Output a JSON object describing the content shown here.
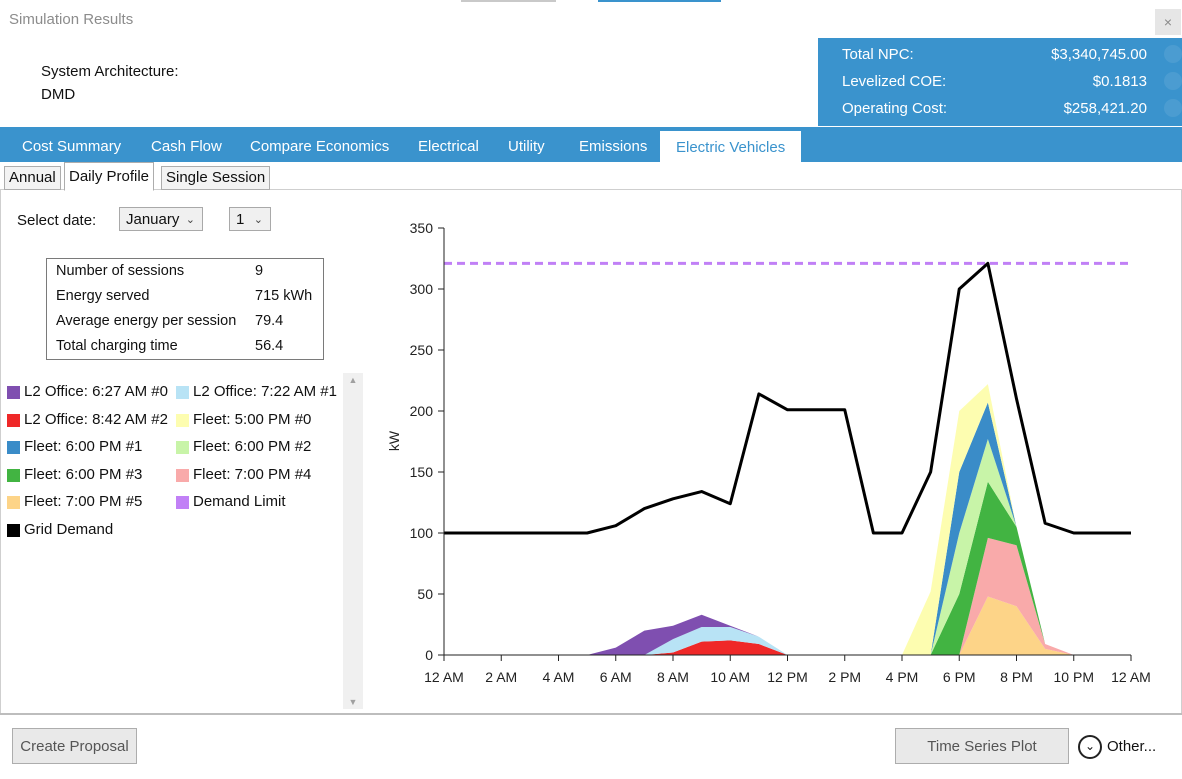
{
  "window": {
    "title": "Simulation Results",
    "close_glyph": "×"
  },
  "architecture": {
    "label": "System Architecture:",
    "value": "DMD"
  },
  "summary": {
    "rows": [
      {
        "label": "Total NPC:",
        "value": "$3,340,745.00"
      },
      {
        "label": "Levelized COE:",
        "value": "$0.1813"
      },
      {
        "label": "Operating Cost:",
        "value": "$258,421.20"
      }
    ]
  },
  "tabs": [
    {
      "label": "Cost Summary",
      "active": false
    },
    {
      "label": "Cash Flow",
      "active": false
    },
    {
      "label": "Compare Economics",
      "active": false
    },
    {
      "label": "Electrical",
      "active": false
    },
    {
      "label": "Utility",
      "active": false
    },
    {
      "label": "Emissions",
      "active": false
    },
    {
      "label": "Electric Vehicles",
      "active": true
    }
  ],
  "subtabs": [
    {
      "label": "Annual",
      "active": false
    },
    {
      "label": "Daily Profile",
      "active": true
    },
    {
      "label": "Single Session",
      "active": false
    }
  ],
  "date_select": {
    "label": "Select date:",
    "month": "January",
    "day": "1",
    "chevron_icon": "chevron-down-icon"
  },
  "stats": [
    {
      "label": "Number of sessions",
      "value": "9"
    },
    {
      "label": "Energy served",
      "value": "715 kWh"
    },
    {
      "label": "Average energy per session",
      "value": "79.4"
    },
    {
      "label": "Total charging time",
      "value": "56.4"
    }
  ],
  "legend": [
    {
      "label": "L2 Office: 6:27 AM #0",
      "color": "#7f4fb0"
    },
    {
      "label": "L2 Office: 7:22 AM #1",
      "color": "#b8e3f5"
    },
    {
      "label": "L2 Office: 8:42 AM #2",
      "color": "#ef2828"
    },
    {
      "label": "Fleet: 5:00 PM #0",
      "color": "#fdfdb0"
    },
    {
      "label": "Fleet: 6:00 PM #1",
      "color": "#3a8cc8"
    },
    {
      "label": "Fleet: 6:00 PM #2",
      "color": "#c8f4a8"
    },
    {
      "label": "Fleet: 6:00 PM #3",
      "color": "#42b442"
    },
    {
      "label": "Fleet: 7:00 PM #4",
      "color": "#f9aaaa"
    },
    {
      "label": "Fleet: 7:00 PM #5",
      "color": "#fdd488"
    },
    {
      "label": "Demand Limit",
      "color": "#c180f6"
    },
    {
      "label": "Grid Demand",
      "color": "#000000"
    }
  ],
  "chart_data": {
    "type": "area",
    "ylabel": "kW",
    "xlabel": "",
    "ylim": [
      0,
      350
    ],
    "yticks": [
      0,
      50,
      100,
      150,
      200,
      250,
      300,
      350
    ],
    "x_tick_labels": [
      "12 AM",
      "2 AM",
      "4 AM",
      "6 AM",
      "8 AM",
      "10 AM",
      "12 PM",
      "2 PM",
      "4 PM",
      "6 PM",
      "8 PM",
      "10 PM",
      "12 AM"
    ],
    "x_hours": [
      0,
      1,
      2,
      3,
      4,
      5,
      6,
      7,
      8,
      9,
      10,
      11,
      12,
      13,
      14,
      15,
      16,
      17,
      18,
      19,
      20,
      21,
      22,
      23,
      24
    ],
    "grid": false,
    "demand_limit": 321,
    "grid_demand": [
      100,
      100,
      100,
      100,
      100,
      100,
      106,
      120,
      128,
      134,
      124,
      214,
      201,
      201,
      201,
      100,
      100,
      150,
      300,
      321,
      210,
      108,
      100,
      100,
      100
    ],
    "stacked_series": [
      {
        "name": "L2 Office: 8:42 AM #2",
        "color": "#ef2828",
        "values": [
          0,
          0,
          0,
          0,
          0,
          0,
          0,
          0,
          2,
          11,
          12,
          9,
          0,
          0,
          0,
          0,
          0,
          0,
          0,
          0,
          0,
          0,
          0,
          0,
          0
        ]
      },
      {
        "name": "L2 Office: 7:22 AM #1",
        "color": "#b8e3f5",
        "values": [
          0,
          0,
          0,
          0,
          0,
          0,
          0,
          0,
          11,
          12,
          11,
          6,
          0,
          0,
          0,
          0,
          0,
          0,
          0,
          0,
          0,
          0,
          0,
          0,
          0
        ]
      },
      {
        "name": "L2 Office: 6:27 AM #0",
        "color": "#7f4fb0",
        "values": [
          0,
          0,
          0,
          0,
          0,
          0,
          6,
          20,
          11,
          10,
          1,
          0,
          0,
          0,
          0,
          0,
          0,
          0,
          0,
          0,
          0,
          0,
          0,
          0,
          0
        ]
      },
      {
        "name": "Fleet: 7:00 PM #5",
        "color": "#fdd488",
        "values": [
          0,
          0,
          0,
          0,
          0,
          0,
          0,
          0,
          0,
          0,
          0,
          0,
          0,
          0,
          0,
          0,
          0,
          0,
          0,
          48,
          40,
          5,
          0,
          0,
          0
        ]
      },
      {
        "name": "Fleet: 7:00 PM #4",
        "color": "#f9aaaa",
        "values": [
          0,
          0,
          0,
          0,
          0,
          0,
          0,
          0,
          0,
          0,
          0,
          0,
          0,
          0,
          0,
          0,
          0,
          0,
          0,
          48,
          50,
          4,
          0,
          0,
          0
        ]
      },
      {
        "name": "Fleet: 6:00 PM #3",
        "color": "#42b442",
        "values": [
          0,
          0,
          0,
          0,
          0,
          0,
          0,
          0,
          0,
          0,
          0,
          0,
          0,
          0,
          0,
          0,
          0,
          0,
          50,
          46,
          15,
          0,
          0,
          0,
          0
        ]
      },
      {
        "name": "Fleet: 6:00 PM #2",
        "color": "#c8f4a8",
        "values": [
          0,
          0,
          0,
          0,
          0,
          0,
          0,
          0,
          0,
          0,
          0,
          0,
          0,
          0,
          0,
          0,
          0,
          0,
          50,
          35,
          0,
          0,
          0,
          0,
          0
        ]
      },
      {
        "name": "Fleet: 6:00 PM #1",
        "color": "#3a8cc8",
        "values": [
          0,
          0,
          0,
          0,
          0,
          0,
          0,
          0,
          0,
          0,
          0,
          0,
          0,
          0,
          0,
          0,
          0,
          0,
          50,
          30,
          0,
          0,
          0,
          0,
          0
        ]
      },
      {
        "name": "Fleet: 5:00 PM #0",
        "color": "#fdfdb0",
        "values": [
          0,
          0,
          0,
          0,
          0,
          0,
          0,
          0,
          0,
          0,
          0,
          0,
          0,
          0,
          0,
          0,
          0,
          52,
          50,
          15,
          0,
          0,
          0,
          0,
          0
        ]
      }
    ]
  },
  "buttons": {
    "create_proposal": "Create Proposal",
    "time_series_plot": "Time Series Plot",
    "other": "Other...",
    "other_icon": "chevron-down-circle-icon"
  }
}
